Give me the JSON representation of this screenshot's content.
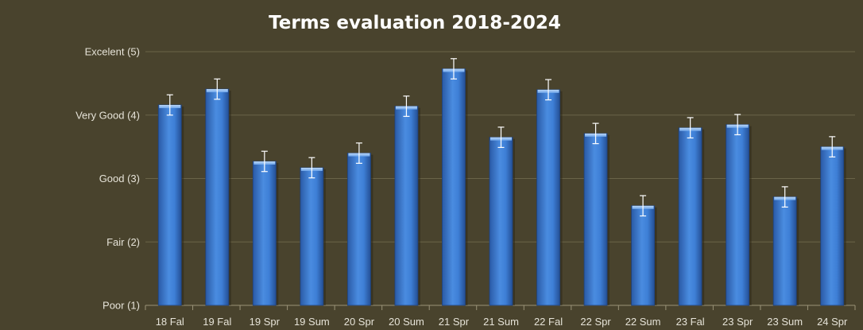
{
  "chart_data": {
    "type": "bar",
    "title": "Terms evaluation 2018-2024",
    "xlabel": "",
    "ylabel": "",
    "ylim": [
      1,
      5
    ],
    "y_ticks": [
      {
        "value": 1,
        "label": "Poor (1)"
      },
      {
        "value": 2,
        "label": "Fair (2)"
      },
      {
        "value": 3,
        "label": "Good (3)"
      },
      {
        "value": 4,
        "label": "Very Good (4)"
      },
      {
        "value": 5,
        "label": "Excelent (5)"
      }
    ],
    "grid": true,
    "error_bars": true,
    "colors": {
      "bar": "#3f7fd4",
      "bar_light": "#7eb3f2",
      "bar_dark": "#244f95",
      "background": "#49432d"
    },
    "categories": [
      "18 Fal",
      "19 Fal",
      "19 Spr",
      "19 Sum",
      "20 Spr",
      "20 Sum",
      "21 Spr",
      "21 Sum",
      "22 Fal",
      "22 Spr",
      "22 Sum",
      "23 Fal",
      "23 Spr",
      "23 Sum",
      "24 Spr"
    ],
    "values": [
      4.16,
      4.41,
      3.27,
      3.17,
      3.4,
      4.14,
      4.73,
      3.65,
      4.4,
      3.71,
      2.57,
      3.8,
      3.85,
      2.71,
      3.5
    ],
    "errors": [
      0.16,
      0.16,
      0.16,
      0.16,
      0.16,
      0.16,
      0.16,
      0.16,
      0.16,
      0.16,
      0.16,
      0.16,
      0.16,
      0.16,
      0.16
    ]
  }
}
